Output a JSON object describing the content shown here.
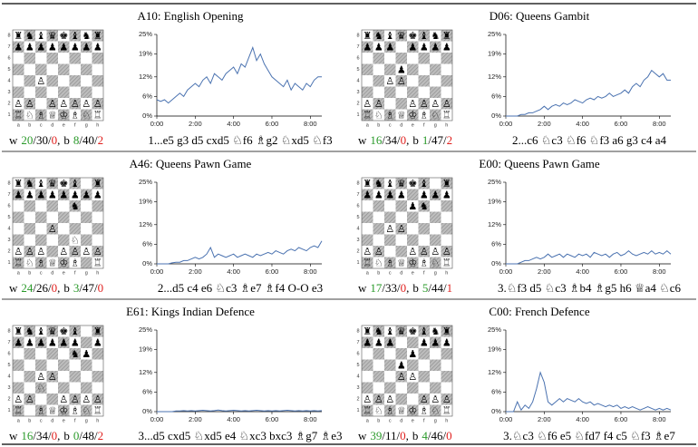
{
  "board_files": [
    "a",
    "b",
    "c",
    "d",
    "e",
    "f",
    "g",
    "h"
  ],
  "board_ranks": [
    1,
    2,
    3,
    4,
    5,
    6,
    7,
    8
  ],
  "stats_separators": {
    "count": "/",
    "side": ","
  },
  "win_color": "#2a9a2a",
  "loss_color": "#e0201e",
  "panels": [
    {
      "pieces": {
        "a8": "♜",
        "b8": "♞",
        "c8": "♝",
        "d8": "♛",
        "e8": "♚",
        "f8": "♝",
        "g8": "♞",
        "h8": "♜",
        "a7": "♟",
        "b7": "♟",
        "c7": "♟",
        "d7": "♟",
        "e7": "♟",
        "f7": "♟",
        "g7": "♟",
        "h7": "♟",
        "a2": "♙",
        "b2": "♙",
        "c4": "♙",
        "d2": "♙",
        "e2": "♙",
        "f2": "♙",
        "g2": "♙",
        "h2": "♙",
        "a1": "♖",
        "b1": "♘",
        "c1": "♗",
        "d1": "♕",
        "e1": "♔",
        "f1": "♗",
        "g1": "♘",
        "h1": "♖"
      },
      "stats": {
        "white": {
          "label": "w",
          "counts": [
            20,
            30,
            0
          ]
        },
        "black": {
          "label": "b",
          "counts": [
            8,
            40,
            2
          ]
        }
      },
      "moves": "1...e5 g3 d5 cxd5 ♘f6 ♗g2 ♘xd5 ♘f3"
    },
    {
      "pieces": {
        "a8": "♜",
        "b8": "♞",
        "c8": "♝",
        "d8": "♛",
        "e8": "♚",
        "f8": "♝",
        "g8": "♞",
        "h8": "♜",
        "a7": "♟",
        "b7": "♟",
        "c7": "♟",
        "d5": "♟",
        "e7": "♟",
        "f7": "♟",
        "g7": "♟",
        "h7": "♟",
        "a2": "♙",
        "b2": "♙",
        "c4": "♙",
        "d4": "♙",
        "e2": "♙",
        "f2": "♙",
        "g2": "♙",
        "h2": "♙",
        "a1": "♖",
        "b1": "♘",
        "c1": "♗",
        "d1": "♕",
        "e1": "♔",
        "f1": "♗",
        "g1": "♘",
        "h1": "♖"
      },
      "stats": {
        "white": {
          "label": "w",
          "counts": [
            16,
            34,
            0
          ]
        },
        "black": {
          "label": "b",
          "counts": [
            1,
            47,
            2
          ]
        }
      },
      "moves": "2...c6 ♘c3 ♘f6 ♘f3 a6 g3 c4 a4"
    },
    {
      "pieces": {
        "a8": "♜",
        "b8": "♞",
        "c8": "♝",
        "d8": "♛",
        "e8": "♚",
        "f8": "♝",
        "f6": "♞",
        "h8": "♜",
        "a7": "♟",
        "b7": "♟",
        "c7": "♟",
        "d7": "♟",
        "e7": "♟",
        "f7": "♟",
        "g7": "♟",
        "h7": "♟",
        "a2": "♙",
        "b2": "♙",
        "c2": "♙",
        "d4": "♙",
        "e2": "♙",
        "f2": "♙",
        "g2": "♙",
        "h2": "♙",
        "a1": "♖",
        "b1": "♘",
        "c1": "♗",
        "d1": "♕",
        "e1": "♔",
        "f1": "♗",
        "f3": "♘",
        "h1": "♖"
      },
      "stats": {
        "white": {
          "label": "w",
          "counts": [
            24,
            26,
            0
          ]
        },
        "black": {
          "label": "b",
          "counts": [
            3,
            47,
            0
          ]
        }
      },
      "moves": "2...d5 c4 e6 ♘c3 ♗e7 ♗f4 O-O e3"
    },
    {
      "pieces": {
        "a8": "♜",
        "b8": "♞",
        "c8": "♝",
        "d8": "♛",
        "e8": "♚",
        "f8": "♝",
        "f6": "♞",
        "h8": "♜",
        "a7": "♟",
        "b7": "♟",
        "c7": "♟",
        "d7": "♟",
        "e6": "♟",
        "f7": "♟",
        "g7": "♟",
        "h7": "♟",
        "a2": "♙",
        "b2": "♙",
        "c4": "♙",
        "d4": "♙",
        "e2": "♙",
        "f2": "♙",
        "g2": "♙",
        "h2": "♙",
        "a1": "♖",
        "b1": "♘",
        "c1": "♗",
        "d1": "♕",
        "e1": "♔",
        "f1": "♗",
        "g1": "♘",
        "h1": "♖"
      },
      "stats": {
        "white": {
          "label": "w",
          "counts": [
            17,
            33,
            0
          ]
        },
        "black": {
          "label": "b",
          "counts": [
            5,
            44,
            1
          ]
        }
      },
      "moves": "3.♘f3 d5 ♘c3 ♗b4 ♗g5 h6 ♕a4 ♘c6"
    },
    {
      "pieces": {
        "a8": "♜",
        "b8": "♞",
        "c8": "♝",
        "d8": "♛",
        "e8": "♚",
        "f8": "♝",
        "f6": "♞",
        "h8": "♜",
        "a7": "♟",
        "b7": "♟",
        "c7": "♟",
        "d7": "♟",
        "e7": "♟",
        "f7": "♟",
        "g6": "♟",
        "h7": "♟",
        "a2": "♙",
        "b2": "♙",
        "c4": "♙",
        "d4": "♙",
        "e2": "♙",
        "f2": "♙",
        "g2": "♙",
        "h2": "♙",
        "a1": "♖",
        "c3": "♘",
        "c1": "♗",
        "d1": "♕",
        "e1": "♔",
        "f1": "♗",
        "g1": "♘",
        "h1": "♖"
      },
      "stats": {
        "white": {
          "label": "w",
          "counts": [
            16,
            34,
            0
          ]
        },
        "black": {
          "label": "b",
          "counts": [
            0,
            48,
            2
          ]
        }
      },
      "moves": "3...d5 cxd5 ♘xd5 e4 ♘xc3 bxc3 ♗g7 ♗e3"
    },
    {
      "pieces": {
        "a8": "♜",
        "b8": "♞",
        "c8": "♝",
        "d8": "♛",
        "e8": "♚",
        "f8": "♝",
        "g8": "♞",
        "h8": "♜",
        "a7": "♟",
        "b7": "♟",
        "c7": "♟",
        "d5": "♟",
        "e6": "♟",
        "f7": "♟",
        "g7": "♟",
        "h7": "♟",
        "a2": "♙",
        "b2": "♙",
        "c2": "♙",
        "d4": "♙",
        "e4": "♙",
        "f2": "♙",
        "g2": "♙",
        "h2": "♙",
        "a1": "♖",
        "b1": "♘",
        "c1": "♗",
        "d1": "♕",
        "e1": "♔",
        "f1": "♗",
        "g1": "♘",
        "h1": "♖"
      },
      "stats": {
        "white": {
          "label": "w",
          "counts": [
            39,
            11,
            0
          ]
        },
        "black": {
          "label": "b",
          "counts": [
            4,
            46,
            0
          ]
        }
      },
      "moves": "3.♘c3 ♘f6 e5 ♘fd7 f4 c5 ♘f3 ♗e7"
    }
  ],
  "chart_data": [
    {
      "type": "line",
      "title": "A10: English Opening",
      "color": "#4a72b0",
      "grid": false,
      "x": [
        0,
        0.2,
        0.4,
        0.6,
        0.8,
        1,
        1.2,
        1.4,
        1.6,
        1.8,
        2,
        2.2,
        2.4,
        2.6,
        2.8,
        3,
        3.2,
        3.4,
        3.6,
        3.8,
        4,
        4.2,
        4.4,
        4.6,
        4.8,
        5,
        5.2,
        5.4,
        5.6,
        5.8,
        6,
        6.2,
        6.4,
        6.6,
        6.8,
        7,
        7.2,
        7.4,
        7.6,
        7.8,
        8,
        8.2,
        8.4,
        8.6
      ],
      "values": [
        5,
        4.5,
        5,
        4,
        5,
        6,
        7,
        6,
        8,
        9,
        10,
        9,
        11,
        12,
        10,
        13,
        12,
        11,
        13,
        14,
        15,
        13,
        16,
        15,
        18,
        21,
        17,
        19,
        16,
        14,
        12,
        11,
        10,
        9,
        11,
        8,
        10,
        9,
        8,
        10,
        9,
        11,
        12,
        12
      ],
      "xlim": [
        0,
        8.6
      ],
      "xticks": [
        {
          "value": 0,
          "label": "0:00"
        },
        {
          "value": 2,
          "label": "2:00"
        },
        {
          "value": 4,
          "label": "4:00"
        },
        {
          "value": 6,
          "label": "6:00"
        },
        {
          "value": 8,
          "label": "8:00"
        }
      ],
      "ylim": [
        0,
        25
      ],
      "yticks": [
        {
          "value": 0,
          "label": "0%"
        },
        {
          "value": 6,
          "label": "6%"
        },
        {
          "value": 12,
          "label": "12%"
        },
        {
          "value": 19,
          "label": "19%"
        },
        {
          "value": 25,
          "label": "25%"
        }
      ]
    },
    {
      "type": "line",
      "title": "D06: Queens Gambit",
      "color": "#4a72b0",
      "grid": false,
      "x": [
        0,
        0.2,
        0.4,
        0.6,
        0.8,
        1,
        1.2,
        1.4,
        1.6,
        1.8,
        2,
        2.2,
        2.4,
        2.6,
        2.8,
        3,
        3.2,
        3.4,
        3.6,
        3.8,
        4,
        4.2,
        4.4,
        4.6,
        4.8,
        5,
        5.2,
        5.4,
        5.6,
        5.8,
        6,
        6.2,
        6.4,
        6.6,
        6.8,
        7,
        7.2,
        7.4,
        7.6,
        7.8,
        8,
        8.2,
        8.4,
        8.6
      ],
      "values": [
        0,
        0,
        0,
        0,
        0.5,
        0.5,
        1,
        1,
        1.5,
        2,
        3,
        2,
        3,
        3.5,
        3,
        4,
        3.5,
        4,
        5,
        4.5,
        4,
        5,
        5.5,
        5,
        6,
        5.5,
        6,
        7,
        6,
        6.5,
        7,
        8,
        7,
        9,
        10,
        9,
        11,
        12,
        14,
        13,
        12,
        13,
        11,
        11
      ],
      "xlim": [
        0,
        8.6
      ],
      "xticks": [
        {
          "value": 0,
          "label": "0:00"
        },
        {
          "value": 2,
          "label": "2:00"
        },
        {
          "value": 4,
          "label": "4:00"
        },
        {
          "value": 6,
          "label": "6:00"
        },
        {
          "value": 8,
          "label": "8:00"
        }
      ],
      "ylim": [
        0,
        25
      ],
      "yticks": [
        {
          "value": 0,
          "label": "0%"
        },
        {
          "value": 6,
          "label": "6%"
        },
        {
          "value": 12,
          "label": "12%"
        },
        {
          "value": 19,
          "label": "19%"
        },
        {
          "value": 25,
          "label": "25%"
        }
      ]
    },
    {
      "type": "line",
      "title": "A46: Queens Pawn Game",
      "color": "#4a72b0",
      "grid": false,
      "x": [
        0,
        0.2,
        0.4,
        0.6,
        0.8,
        1,
        1.2,
        1.4,
        1.6,
        1.8,
        2,
        2.2,
        2.4,
        2.6,
        2.8,
        3,
        3.2,
        3.4,
        3.6,
        3.8,
        4,
        4.2,
        4.4,
        4.6,
        4.8,
        5,
        5.2,
        5.4,
        5.6,
        5.8,
        6,
        6.2,
        6.4,
        6.6,
        6.8,
        7,
        7.2,
        7.4,
        7.6,
        7.8,
        8,
        8.2,
        8.4,
        8.6
      ],
      "values": [
        0,
        0,
        0,
        0,
        0.3,
        0.5,
        0.5,
        1,
        1,
        1.5,
        2,
        1.5,
        2,
        3,
        5,
        2,
        3,
        2.5,
        2,
        2.5,
        3,
        2,
        2.5,
        3,
        2.5,
        2,
        3,
        2.5,
        3,
        3.5,
        3,
        4,
        3.5,
        3,
        4,
        4.5,
        4,
        5,
        4.5,
        4,
        5,
        5.5,
        5,
        7
      ],
      "xlim": [
        0,
        8.6
      ],
      "xticks": [
        {
          "value": 0,
          "label": "0:00"
        },
        {
          "value": 2,
          "label": "2:00"
        },
        {
          "value": 4,
          "label": "4:00"
        },
        {
          "value": 6,
          "label": "6:00"
        },
        {
          "value": 8,
          "label": "8:00"
        }
      ],
      "ylim": [
        0,
        25
      ],
      "yticks": [
        {
          "value": 0,
          "label": "0%"
        },
        {
          "value": 6,
          "label": "6%"
        },
        {
          "value": 12,
          "label": "12%"
        },
        {
          "value": 19,
          "label": "19%"
        },
        {
          "value": 25,
          "label": "25%"
        }
      ]
    },
    {
      "type": "line",
      "title": "E00: Queens Pawn Game",
      "color": "#4a72b0",
      "grid": false,
      "x": [
        0,
        0.2,
        0.4,
        0.6,
        0.8,
        1,
        1.2,
        1.4,
        1.6,
        1.8,
        2,
        2.2,
        2.4,
        2.6,
        2.8,
        3,
        3.2,
        3.4,
        3.6,
        3.8,
        4,
        4.2,
        4.4,
        4.6,
        4.8,
        5,
        5.2,
        5.4,
        5.6,
        5.8,
        6,
        6.2,
        6.4,
        6.6,
        6.8,
        7,
        7.2,
        7.4,
        7.6,
        7.8,
        8,
        8.2,
        8.4,
        8.6
      ],
      "values": [
        0,
        0,
        0,
        0,
        0.5,
        1,
        1,
        1.5,
        2,
        1.5,
        2,
        3,
        2,
        2.5,
        3,
        2,
        3,
        2.5,
        2,
        3,
        2.5,
        3,
        2,
        3.5,
        3,
        2.5,
        3,
        2,
        3,
        3.5,
        2.5,
        3,
        4,
        3,
        2.5,
        3,
        3.5,
        3,
        4,
        3,
        3.5,
        3,
        4,
        3
      ],
      "xlim": [
        0,
        8.6
      ],
      "xticks": [
        {
          "value": 0,
          "label": "0:00"
        },
        {
          "value": 2,
          "label": "2:00"
        },
        {
          "value": 4,
          "label": "4:00"
        },
        {
          "value": 6,
          "label": "6:00"
        },
        {
          "value": 8,
          "label": "8:00"
        }
      ],
      "ylim": [
        0,
        25
      ],
      "yticks": [
        {
          "value": 0,
          "label": "0%"
        },
        {
          "value": 6,
          "label": "6%"
        },
        {
          "value": 12,
          "label": "12%"
        },
        {
          "value": 19,
          "label": "19%"
        },
        {
          "value": 25,
          "label": "25%"
        }
      ]
    },
    {
      "type": "line",
      "title": "E61: Kings Indian Defence",
      "color": "#4a72b0",
      "grid": false,
      "x": [
        0,
        0.2,
        0.4,
        0.6,
        0.8,
        1,
        1.2,
        1.4,
        1.6,
        1.8,
        2,
        2.2,
        2.4,
        2.6,
        2.8,
        3,
        3.2,
        3.4,
        3.6,
        3.8,
        4,
        4.2,
        4.4,
        4.6,
        4.8,
        5,
        5.2,
        5.4,
        5.6,
        5.8,
        6,
        6.2,
        6.4,
        6.6,
        6.8,
        7,
        7.2,
        7.4,
        7.6,
        7.8,
        8,
        8.2,
        8.4,
        8.6
      ],
      "values": [
        0,
        0,
        0,
        0,
        0,
        0.2,
        0.2,
        0.3,
        0.2,
        0.3,
        0.2,
        0.3,
        0.4,
        0.3,
        0.2,
        0.3,
        0.5,
        0.3,
        0.2,
        0.3,
        0.4,
        0.3,
        0.2,
        0.3,
        0.2,
        0.3,
        0.4,
        0.3,
        0.2,
        0.3,
        0.2,
        0.3,
        0.2,
        0.3,
        0.4,
        0.3,
        0.2,
        0.3,
        0.2,
        0.3,
        0.2,
        0.3,
        0.2,
        0.3
      ],
      "xlim": [
        0,
        8.6
      ],
      "xticks": [
        {
          "value": 0,
          "label": "0:00"
        },
        {
          "value": 2,
          "label": "2:00"
        },
        {
          "value": 4,
          "label": "4:00"
        },
        {
          "value": 6,
          "label": "6:00"
        },
        {
          "value": 8,
          "label": "8:00"
        }
      ],
      "ylim": [
        0,
        25
      ],
      "yticks": [
        {
          "value": 0,
          "label": "0%"
        },
        {
          "value": 6,
          "label": "6%"
        },
        {
          "value": 12,
          "label": "12%"
        },
        {
          "value": 19,
          "label": "19%"
        },
        {
          "value": 25,
          "label": "25%"
        }
      ]
    },
    {
      "type": "line",
      "title": "C00: French Defence",
      "color": "#4a72b0",
      "grid": false,
      "x": [
        0,
        0.2,
        0.4,
        0.6,
        0.8,
        1,
        1.2,
        1.4,
        1.6,
        1.8,
        2,
        2.2,
        2.4,
        2.6,
        2.8,
        3,
        3.2,
        3.4,
        3.6,
        3.8,
        4,
        4.2,
        4.4,
        4.6,
        4.8,
        5,
        5.2,
        5.4,
        5.6,
        5.8,
        6,
        6.2,
        6.4,
        6.6,
        6.8,
        7,
        7.2,
        7.4,
        7.6,
        7.8,
        8,
        8.2,
        8.4,
        8.6
      ],
      "values": [
        0,
        0,
        0,
        3,
        0.5,
        2,
        1,
        3,
        7,
        12,
        9,
        3,
        2,
        3,
        4,
        3,
        4,
        3.5,
        3,
        4,
        3,
        2.5,
        3,
        2,
        2.5,
        2,
        1.5,
        2,
        1.5,
        2,
        1,
        1.5,
        1,
        1.5,
        1,
        0.5,
        1,
        1.5,
        1,
        0.5,
        1,
        0.5,
        1,
        0.5
      ],
      "xlim": [
        0,
        8.6
      ],
      "xticks": [
        {
          "value": 0,
          "label": "0:00"
        },
        {
          "value": 2,
          "label": "2:00"
        },
        {
          "value": 4,
          "label": "4:00"
        },
        {
          "value": 6,
          "label": "6:00"
        },
        {
          "value": 8,
          "label": "8:00"
        }
      ],
      "ylim": [
        0,
        25
      ],
      "yticks": [
        {
          "value": 0,
          "label": "0%"
        },
        {
          "value": 6,
          "label": "6%"
        },
        {
          "value": 12,
          "label": "12%"
        },
        {
          "value": 19,
          "label": "19%"
        },
        {
          "value": 25,
          "label": "25%"
        }
      ]
    }
  ]
}
